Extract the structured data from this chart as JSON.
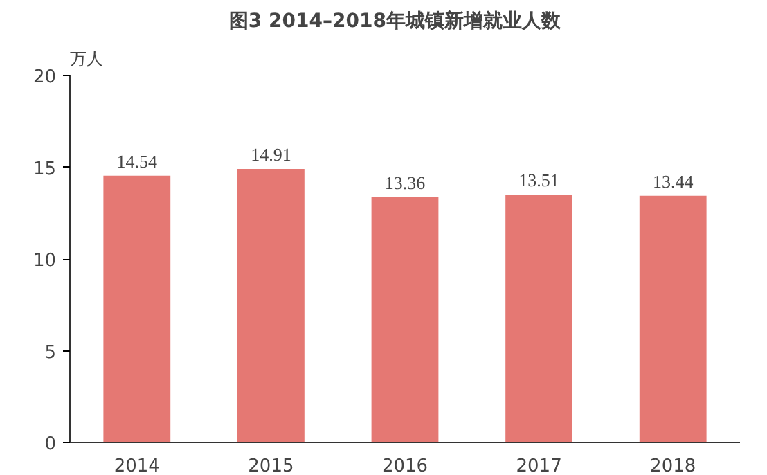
{
  "chart_data": {
    "type": "bar",
    "title": "图3    2014–2018年城镇新增就业人数",
    "ylabel": "万人",
    "categories": [
      "2014",
      "2015",
      "2016",
      "2017",
      "2018"
    ],
    "values": [
      14.54,
      14.91,
      13.36,
      13.51,
      13.44
    ],
    "color": "#e57873",
    "ylim": [
      0,
      20
    ],
    "yticks": [
      0,
      5,
      10,
      15,
      20
    ],
    "grid": false,
    "data_labels": true
  }
}
